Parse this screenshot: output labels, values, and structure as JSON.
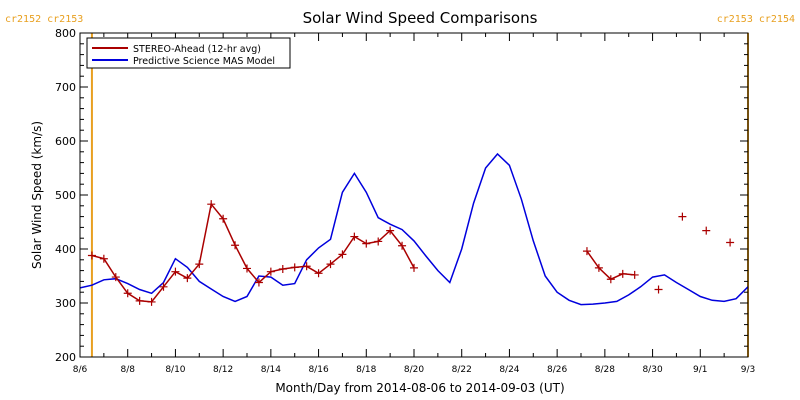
{
  "chart_data": {
    "type": "line",
    "title": "Solar Wind Speed Comparisons",
    "xlabel": "Month/Day from 2014-08-06 to 2014-09-03 (UT)",
    "ylabel": "Solar Wind Speed (km/s)",
    "xlim": [
      "2014-08-06T00:00",
      "2014-09-03T00:00"
    ],
    "ylim": [
      200,
      800
    ],
    "x_tick_labels": [
      "8/6",
      "8/8",
      "8/10",
      "8/12",
      "8/14",
      "8/16",
      "8/18",
      "8/20",
      "8/22",
      "8/24",
      "8/26",
      "8/28",
      "8/30",
      "9/1",
      "9/3"
    ],
    "x_tick_dates": [
      "2014-08-06",
      "2014-08-08",
      "2014-08-10",
      "2014-08-12",
      "2014-08-14",
      "2014-08-16",
      "2014-08-18",
      "2014-08-20",
      "2014-08-22",
      "2014-08-24",
      "2014-08-26",
      "2014-08-28",
      "2014-08-30",
      "2014-09-01",
      "2014-09-03"
    ],
    "y_ticks": [
      200,
      300,
      400,
      500,
      600,
      700,
      800
    ],
    "grid": false,
    "legend_placement": "top-left",
    "carrington_markers": [
      {
        "label": "cr2152 cr2153",
        "date": "2014-08-06T12:00",
        "color": "#e8a020"
      },
      {
        "label": "cr2153 cr2154",
        "date": "2014-09-03T00:00",
        "color": "#e8a020"
      }
    ],
    "series": [
      {
        "name": "STEREO-Ahead (12-hr avg)",
        "color": "#aa0000",
        "marker": "+",
        "segments": [
          [
            [
              "2014-08-06T12:00",
              388
            ],
            [
              "2014-08-07T00:00",
              382
            ],
            [
              "2014-08-07T12:00",
              348
            ],
            [
              "2014-08-08T00:00",
              318
            ],
            [
              "2014-08-08T12:00",
              304
            ],
            [
              "2014-08-09T00:00",
              302
            ],
            [
              "2014-08-09T12:00",
              330
            ],
            [
              "2014-08-10T00:00",
              358
            ],
            [
              "2014-08-10T12:00",
              346
            ],
            [
              "2014-08-11T00:00",
              372
            ],
            [
              "2014-08-11T12:00",
              483
            ],
            [
              "2014-08-12T00:00",
              456
            ],
            [
              "2014-08-12T12:00",
              407
            ],
            [
              "2014-08-13T00:00",
              364
            ],
            [
              "2014-08-13T12:00",
              338
            ],
            [
              "2014-08-14T00:00",
              358
            ],
            [
              "2014-08-14T12:00",
              363
            ],
            [
              "2014-08-15T00:00",
              366
            ],
            [
              "2014-08-15T12:00",
              368
            ],
            [
              "2014-08-16T00:00",
              355
            ],
            [
              "2014-08-16T12:00",
              372
            ],
            [
              "2014-08-17T00:00",
              390
            ],
            [
              "2014-08-17T12:00",
              423
            ],
            [
              "2014-08-18T00:00",
              410
            ],
            [
              "2014-08-18T12:00",
              414
            ],
            [
              "2014-08-19T00:00",
              434
            ],
            [
              "2014-08-19T12:00",
              406
            ],
            [
              "2014-08-20T00:00",
              365
            ]
          ],
          [
            [
              "2014-08-27T06:00",
              396
            ],
            [
              "2014-08-27T18:00",
              365
            ],
            [
              "2014-08-28T06:00",
              344
            ],
            [
              "2014-08-28T18:00",
              354
            ],
            [
              "2014-08-29T06:00",
              352
            ]
          ]
        ],
        "isolated_points": [
          [
            "2014-08-30T06:00",
            325
          ],
          [
            "2014-08-31T06:00",
            460
          ],
          [
            "2014-09-01T06:00",
            434
          ],
          [
            "2014-09-02T06:00",
            412
          ]
        ]
      },
      {
        "name": "Predictive Science MAS Model",
        "color": "#0000dd",
        "points": [
          [
            "2014-08-06T00:00",
            328
          ],
          [
            "2014-08-06T12:00",
            333
          ],
          [
            "2014-08-07T00:00",
            343
          ],
          [
            "2014-08-07T12:00",
            345
          ],
          [
            "2014-08-08T00:00",
            336
          ],
          [
            "2014-08-08T12:00",
            325
          ],
          [
            "2014-08-09T00:00",
            318
          ],
          [
            "2014-08-09T12:00",
            338
          ],
          [
            "2014-08-10T00:00",
            382
          ],
          [
            "2014-08-10T12:00",
            366
          ],
          [
            "2014-08-11T00:00",
            340
          ],
          [
            "2014-08-11T12:00",
            326
          ],
          [
            "2014-08-12T00:00",
            312
          ],
          [
            "2014-08-12T12:00",
            303
          ],
          [
            "2014-08-13T00:00",
            312
          ],
          [
            "2014-08-13T12:00",
            350
          ],
          [
            "2014-08-14T00:00",
            348
          ],
          [
            "2014-08-14T12:00",
            333
          ],
          [
            "2014-08-15T00:00",
            336
          ],
          [
            "2014-08-15T12:00",
            380
          ],
          [
            "2014-08-16T00:00",
            402
          ],
          [
            "2014-08-16T12:00",
            418
          ],
          [
            "2014-08-17T00:00",
            505
          ],
          [
            "2014-08-17T12:00",
            540
          ],
          [
            "2014-08-18T00:00",
            505
          ],
          [
            "2014-08-18T12:00",
            458
          ],
          [
            "2014-08-19T00:00",
            446
          ],
          [
            "2014-08-19T12:00",
            436
          ],
          [
            "2014-08-20T00:00",
            415
          ],
          [
            "2014-08-20T12:00",
            387
          ],
          [
            "2014-08-21T00:00",
            360
          ],
          [
            "2014-08-21T12:00",
            338
          ],
          [
            "2014-08-22T00:00",
            400
          ],
          [
            "2014-08-22T12:00",
            485
          ],
          [
            "2014-08-23T00:00",
            550
          ],
          [
            "2014-08-23T12:00",
            576
          ],
          [
            "2014-08-24T00:00",
            555
          ],
          [
            "2014-08-24T12:00",
            492
          ],
          [
            "2014-08-25T00:00",
            415
          ],
          [
            "2014-08-25T12:00",
            350
          ],
          [
            "2014-08-26T00:00",
            320
          ],
          [
            "2014-08-26T12:00",
            305
          ],
          [
            "2014-08-27T00:00",
            297
          ],
          [
            "2014-08-27T12:00",
            298
          ],
          [
            "2014-08-28T00:00",
            300
          ],
          [
            "2014-08-28T12:00",
            303
          ],
          [
            "2014-08-29T00:00",
            315
          ],
          [
            "2014-08-29T12:00",
            330
          ],
          [
            "2014-08-30T00:00",
            348
          ],
          [
            "2014-08-30T12:00",
            352
          ],
          [
            "2014-08-31T00:00",
            338
          ],
          [
            "2014-08-31T12:00",
            325
          ],
          [
            "2014-09-01T00:00",
            312
          ],
          [
            "2014-09-01T12:00",
            305
          ],
          [
            "2014-09-02T00:00",
            303
          ],
          [
            "2014-09-02T12:00",
            308
          ],
          [
            "2014-09-03T00:00",
            330
          ]
        ]
      }
    ]
  }
}
